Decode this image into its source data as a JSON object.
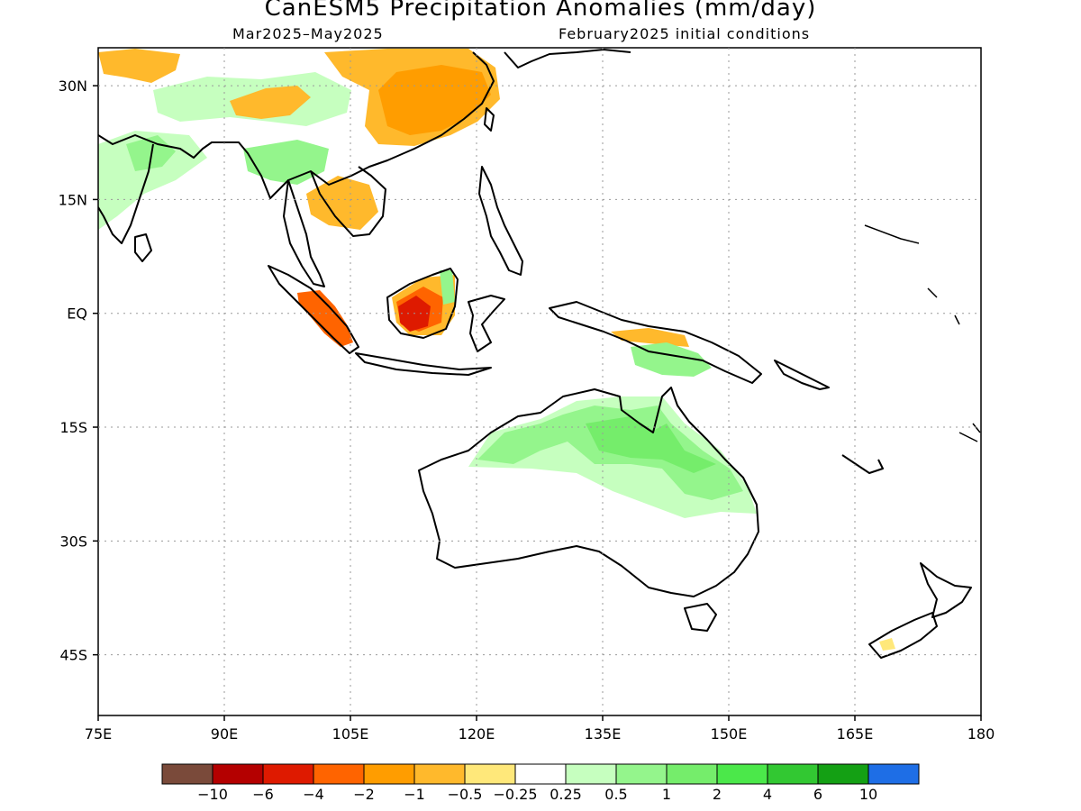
{
  "title": "CanESM5 Precipitation Anomalies (mm/day)",
  "subtitle_left": "Mar2025–May2025",
  "subtitle_right": "February2025 initial conditions",
  "map": {
    "lon_range": [
      75,
      180
    ],
    "lat_range": [
      -53,
      35
    ],
    "lon_ticks": [
      {
        "value": 75,
        "label": "75E"
      },
      {
        "value": 90,
        "label": "90E"
      },
      {
        "value": 105,
        "label": "105E"
      },
      {
        "value": 120,
        "label": "120E"
      },
      {
        "value": 135,
        "label": "135E"
      },
      {
        "value": 150,
        "label": "150E"
      },
      {
        "value": 165,
        "label": "165E"
      },
      {
        "value": 180,
        "label": "180"
      }
    ],
    "lat_ticks": [
      {
        "value": 30,
        "label": "30N"
      },
      {
        "value": 15,
        "label": "15N"
      },
      {
        "value": 0,
        "label": "EQ"
      },
      {
        "value": -15,
        "label": "15S"
      },
      {
        "value": -30,
        "label": "30S"
      },
      {
        "value": -45,
        "label": "45S"
      }
    ],
    "grid": true,
    "grid_style": "dotted"
  },
  "colorbar": {
    "colors": [
      "#7a4a3a",
      "#b40000",
      "#de1a00",
      "#ff6400",
      "#ff9d00",
      "#ffb92c",
      "#ffe87a",
      "#ffffff",
      "#c6ffbf",
      "#94f58c",
      "#75ed6b",
      "#4be84a",
      "#32c832",
      "#14a014",
      "#1e6ee6"
    ],
    "labels": [
      "−10",
      "−6",
      "−4",
      "−2",
      "−1",
      "−0.5",
      "−0.25",
      "0.25",
      "0.5",
      "1",
      "2",
      "4",
      "6",
      "10"
    ]
  }
}
